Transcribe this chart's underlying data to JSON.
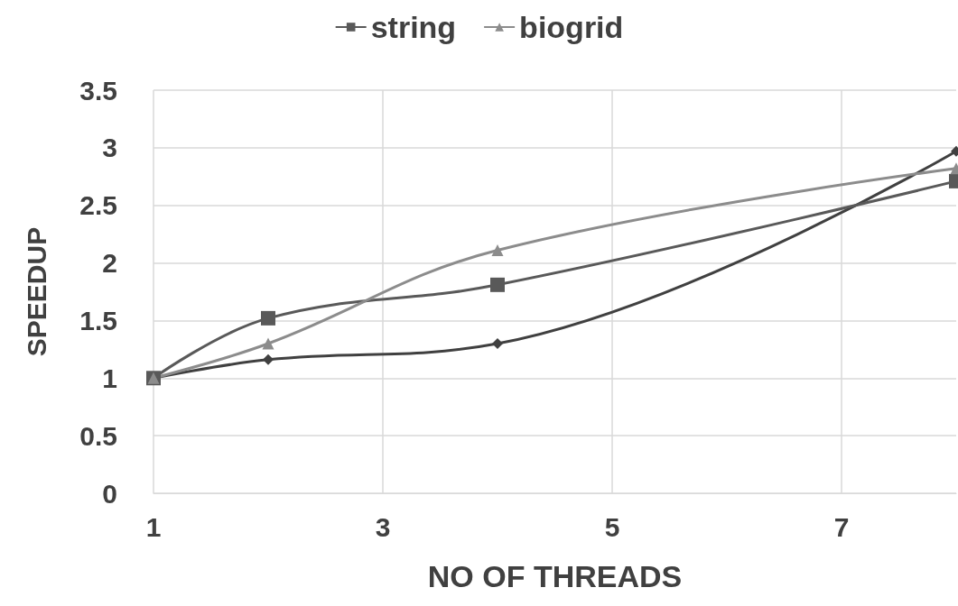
{
  "chart_data": {
    "type": "line",
    "xlabel": "NO OF THREADS",
    "ylabel": "SPEEDUP",
    "x": [
      1,
      2,
      4,
      8
    ],
    "series": [
      {
        "color": "#404040",
        "marker": "diamond",
        "values": [
          1,
          1.16,
          1.3,
          2.97
        ]
      },
      {
        "name": "string",
        "color": "#595959",
        "marker": "square",
        "values": [
          1,
          1.52,
          1.81,
          2.71
        ]
      },
      {
        "name": "biogrid",
        "color": "#8c8c8c",
        "marker": "triangle",
        "values": [
          1,
          1.3,
          2.11,
          2.82
        ]
      }
    ],
    "xlim": [
      1,
      8
    ],
    "xticks": [
      1,
      3,
      5,
      7
    ],
    "ylim": [
      0,
      3.5
    ],
    "yticks": [
      0,
      0.5,
      1,
      1.5,
      2,
      2.5,
      3,
      3.5
    ],
    "grid": true,
    "legend": "top"
  }
}
